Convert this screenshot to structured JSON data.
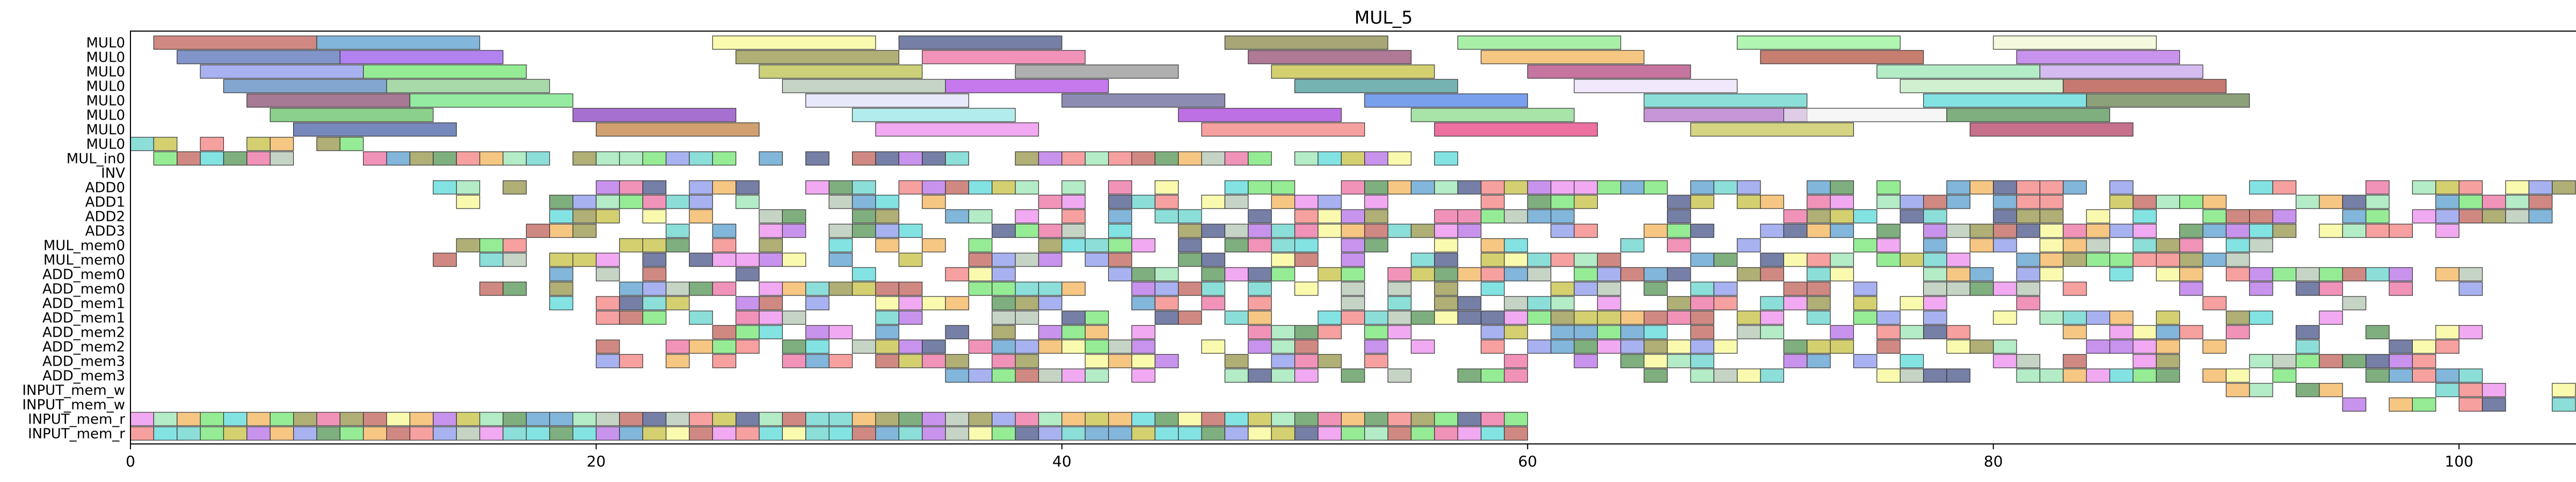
{
  "chart_data": {
    "type": "gantt",
    "title": "MUL_5",
    "xlabel": "",
    "ylabel": "",
    "xlim": [
      0,
      105
    ],
    "xticks": [
      0,
      20,
      40,
      60,
      80,
      100
    ],
    "grid": false,
    "rows": [
      "MUL0",
      "MUL0",
      "MUL0",
      "MUL0",
      "MUL0",
      "MUL0",
      "MUL0",
      "MUL0",
      "MUL_in0",
      "INV",
      "ADD0",
      "ADD1",
      "ADD2",
      "ADD3",
      "MUL_mem0",
      "MUL_mem0",
      "ADD_mem0",
      "ADD_mem0",
      "ADD_mem1",
      "ADD_mem1",
      "ADD_mem2",
      "ADD_mem2",
      "ADD_mem3",
      "ADD_mem3",
      "INPUT_mem_w",
      "INPUT_mem_w",
      "INPUT_mem_r",
      "INPUT_mem_r"
    ],
    "long_tasks": [
      [
        [
          1,
          8,
          "#b03a2e"
        ],
        [
          8,
          15,
          "#2e86c1"
        ],
        [
          25,
          32,
          "#f7f77a"
        ],
        [
          33,
          40,
          "#1b2a6b"
        ],
        [
          47,
          54,
          "#6b6b1a"
        ],
        [
          57,
          64,
          "#6ee66e"
        ],
        [
          69,
          76,
          "#7cee7c"
        ],
        [
          80,
          87,
          "#eef5c6"
        ]
      ],
      [
        [
          2,
          9,
          "#2e4fa8"
        ],
        [
          9,
          16,
          "#7e2ee6"
        ],
        [
          26,
          33,
          "#7a7a1a"
        ],
        [
          34,
          41,
          "#e84b8a"
        ],
        [
          48,
          55,
          "#7b1f4f"
        ],
        [
          58,
          65,
          "#f0a030"
        ],
        [
          70,
          77,
          "#a02810"
        ],
        [
          81,
          88,
          "#a34be0"
        ]
      ],
      [
        [
          3,
          10,
          "#6e7ee6"
        ],
        [
          10,
          17,
          "#4ee04e"
        ],
        [
          27,
          34,
          "#a8b020"
        ],
        [
          38,
          45,
          "#7a7a7a"
        ],
        [
          49,
          56,
          "#b8b010"
        ],
        [
          60,
          67,
          "#a01860"
        ],
        [
          75,
          82,
          "#80e0a0"
        ],
        [
          82,
          89,
          "#b88ee6"
        ]
      ],
      [
        [
          4,
          11,
          "#2e6ab0"
        ],
        [
          11,
          18,
          "#6ec06e"
        ],
        [
          28,
          35,
          "#a0b8a0"
        ],
        [
          35,
          42,
          "#a020e0"
        ],
        [
          50,
          57,
          "#1a8080"
        ],
        [
          62,
          69,
          "#e8d8f8"
        ],
        [
          76,
          83,
          "#b0e8b0"
        ],
        [
          83,
          90,
          "#a02010"
        ]
      ],
      [
        [
          5,
          12,
          "#6b1f4f"
        ],
        [
          12,
          19,
          "#4ee060"
        ],
        [
          29,
          36,
          "#d8d8f8"
        ],
        [
          40,
          47,
          "#404080"
        ],
        [
          53,
          60,
          "#2060e0"
        ],
        [
          65,
          72,
          "#40c8c0"
        ],
        [
          77,
          84,
          "#30d0d0"
        ],
        [
          84,
          91,
          "#406020"
        ]
      ],
      [
        [
          6,
          13,
          "#3eb03e"
        ],
        [
          19,
          26,
          "#6a10b0"
        ],
        [
          31,
          38,
          "#80e0e0"
        ],
        [
          45,
          52,
          "#9010d0"
        ],
        [
          55,
          62,
          "#6ed06e"
        ],
        [
          65,
          72,
          "#a050c0"
        ],
        [
          71,
          78,
          "#f0f0f0"
        ],
        [
          78,
          85,
          "#2a7a2a"
        ]
      ],
      [
        [
          7,
          14,
          "#1a3890"
        ],
        [
          20,
          27,
          "#b06010"
        ],
        [
          32,
          39,
          "#e870e8"
        ],
        [
          46,
          53,
          "#f06060"
        ],
        [
          56,
          63,
          "#e01060"
        ],
        [
          67,
          74,
          "#b8b830"
        ],
        [
          79,
          86,
          "#a01040"
        ]
      ]
    ],
    "short_series_note": "remaining rows contain 1-unit operation blocks"
  }
}
